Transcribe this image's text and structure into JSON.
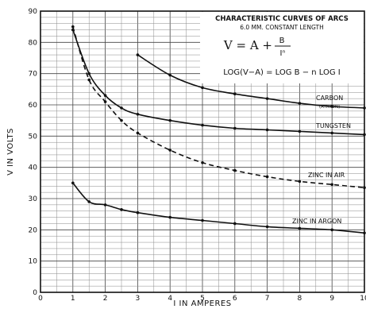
{
  "chart_data": {
    "type": "line",
    "title": "CHARACTERISTIC CURVES OF ARCS",
    "subtitle": "6.0 MM. CONSTANT LENGTH",
    "formula_main": "V = A +",
    "formula_num": "B",
    "formula_den": "Iⁿ",
    "formula_log": "LOG(V−A) = LOG B − n LOG I",
    "xlabel": "I IN AMPERES",
    "ylabel": "V IN VOLTS",
    "xlim": [
      0,
      10
    ],
    "ylim": [
      0,
      90
    ],
    "x_ticks": [
      "0",
      "1",
      "2",
      "3",
      "4",
      "5",
      "6",
      "7",
      "8",
      "9",
      "10"
    ],
    "y_ticks": [
      "0",
      "10",
      "20",
      "30",
      "40",
      "50",
      "60",
      "70",
      "80",
      "90"
    ],
    "grid": true,
    "series": [
      {
        "name": "CARBON",
        "note": "(AYRTON)",
        "style": "solid",
        "points": [
          [
            3,
            76
          ],
          [
            4,
            69.5
          ],
          [
            5,
            65.5
          ],
          [
            6,
            63.5
          ],
          [
            7,
            62
          ],
          [
            8,
            60.5
          ],
          [
            9,
            59.5
          ],
          [
            10,
            59
          ]
        ]
      },
      {
        "name": "TUNGSTEN",
        "style": "solid",
        "points": [
          [
            1,
            84
          ],
          [
            1.5,
            70
          ],
          [
            2,
            63
          ],
          [
            2.5,
            59
          ],
          [
            3,
            57
          ],
          [
            4,
            55
          ],
          [
            5,
            53.5
          ],
          [
            6,
            52.5
          ],
          [
            7,
            52
          ],
          [
            8,
            51.5
          ],
          [
            9,
            51
          ],
          [
            10,
            50.5
          ]
        ]
      },
      {
        "name": "ZINC IN AIR",
        "style": "dashed",
        "points": [
          [
            1,
            85
          ],
          [
            1.5,
            68
          ],
          [
            2,
            61
          ],
          [
            2.5,
            55
          ],
          [
            3,
            51
          ],
          [
            4,
            45.5
          ],
          [
            5,
            41.5
          ],
          [
            6,
            39
          ],
          [
            7,
            37
          ],
          [
            8,
            35.5
          ],
          [
            9,
            34.5
          ],
          [
            10,
            33.5
          ]
        ]
      },
      {
        "name": "ZINC IN ARGON",
        "style": "solid",
        "points": [
          [
            1,
            35
          ],
          [
            1.5,
            29
          ],
          [
            2,
            28
          ],
          [
            2.5,
            26.5
          ],
          [
            3,
            25.5
          ],
          [
            4,
            24
          ],
          [
            5,
            23
          ],
          [
            6,
            22
          ],
          [
            7,
            21
          ],
          [
            8,
            20.5
          ],
          [
            9,
            20
          ],
          [
            10,
            19
          ]
        ]
      }
    ]
  }
}
